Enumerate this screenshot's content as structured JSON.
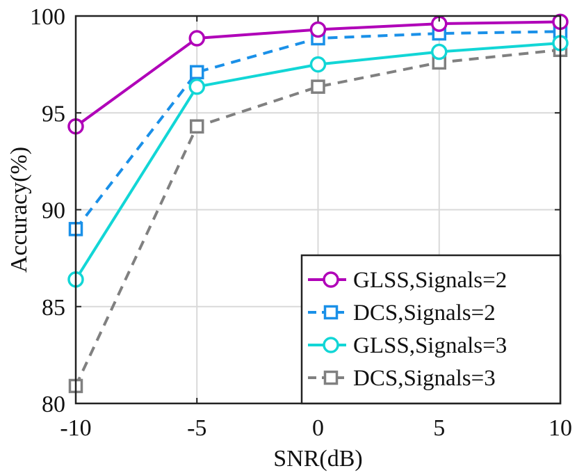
{
  "chart_data": {
    "type": "line",
    "title": "",
    "xlabel": "SNR(dB)",
    "ylabel": "Accuracy(%)",
    "x": [
      -10,
      -5,
      0,
      5,
      10
    ],
    "xticks": [
      -10,
      -5,
      0,
      5,
      10
    ],
    "xtick_labels": [
      "-10",
      "-5",
      "0",
      "5",
      "10"
    ],
    "yticks": [
      80,
      85,
      90,
      95,
      100
    ],
    "ytick_labels": [
      "80",
      "85",
      "90",
      "95",
      "100"
    ],
    "xlim": [
      -10,
      10
    ],
    "ylim": [
      80,
      100
    ],
    "grid": true,
    "legend_position": "bottom-right",
    "series": [
      {
        "name": "GLSS,Signals=2",
        "values": [
          94.3,
          98.85,
          99.3,
          99.6,
          99.7
        ],
        "color": "#b000b8",
        "dash": "solid",
        "marker": "circle"
      },
      {
        "name": "DCS,Signals=2",
        "values": [
          89.0,
          97.1,
          98.85,
          99.1,
          99.2
        ],
        "color": "#1a90e8",
        "dash": "dashed",
        "marker": "square"
      },
      {
        "name": "GLSS,Signals=3",
        "values": [
          86.4,
          96.35,
          97.5,
          98.15,
          98.6
        ],
        "color": "#12d6d6",
        "dash": "solid",
        "marker": "circle"
      },
      {
        "name": "DCS,Signals=3",
        "values": [
          80.9,
          94.3,
          96.35,
          97.6,
          98.25
        ],
        "color": "#808080",
        "dash": "dashed",
        "marker": "square"
      }
    ]
  }
}
